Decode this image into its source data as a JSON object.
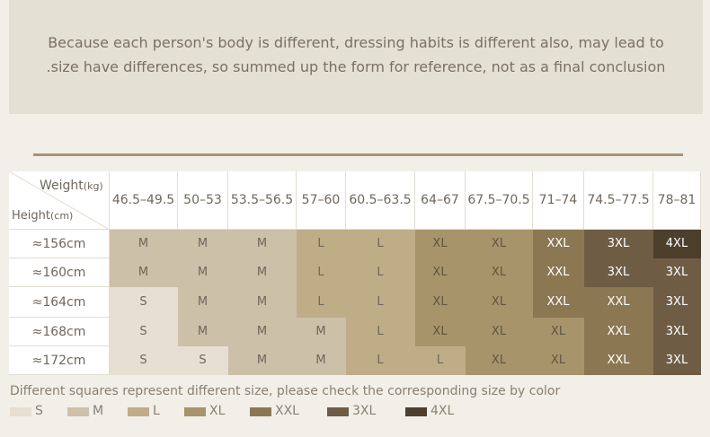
{
  "intro": {
    "lines": [
      "Because each person's body is different, dressing habits is different also, may lead to",
      ".size have differences, so summed up the form for reference, not as a final conclusion"
    ]
  },
  "table": {
    "corner": {
      "weight": "Weight",
      "weight_unit": "(kg)",
      "height": "Height",
      "height_unit": "(cm)"
    },
    "columns": [
      "46.5–49.5",
      "50–53",
      "53.5–56.5",
      "57–60",
      "60.5–63.5",
      "64–67",
      "67.5–70.5",
      "71–74",
      "74.5–77.5",
      "78–81"
    ],
    "rows": [
      {
        "label": "≈156cm",
        "cells": [
          "M",
          "M",
          "M",
          "L",
          "L",
          "XL",
          "XL",
          "XXL",
          "3XL",
          "4XL"
        ]
      },
      {
        "label": "≈160cm",
        "cells": [
          "M",
          "M",
          "M",
          "L",
          "L",
          "XL",
          "XL",
          "XXL",
          "3XL",
          "3XL"
        ]
      },
      {
        "label": "≈164cm",
        "cells": [
          "S",
          "M",
          "M",
          "L",
          "L",
          "XL",
          "XL",
          "XXL",
          "XXL",
          "3XL"
        ]
      },
      {
        "label": "≈168cm",
        "cells": [
          "S",
          "M",
          "M",
          "M",
          "L",
          "XL",
          "XL",
          "XL",
          "XXL",
          "3XL"
        ]
      },
      {
        "label": "≈172cm",
        "cells": [
          "S",
          "S",
          "M",
          "M",
          "L",
          "L",
          "XL",
          "XL",
          "XXL",
          "3XL"
        ]
      }
    ]
  },
  "legend": {
    "caption": "Different squares represent different size, please check the corresponding size by color",
    "items": [
      {
        "label": "S",
        "color": "#e6dfd2",
        "text_color": "#6f675c"
      },
      {
        "label": "M",
        "color": "#cdc0a8",
        "text_color": "#6f675c"
      },
      {
        "label": "L",
        "color": "#bfad88",
        "text_color": "#6f675c"
      },
      {
        "label": "XL",
        "color": "#a8946a",
        "text_color": "#5f563f"
      },
      {
        "label": "XXL",
        "color": "#8c7753",
        "text_color": "#ffffff"
      },
      {
        "label": "3XL",
        "color": "#6e5d44",
        "text_color": "#ffffff"
      },
      {
        "label": "4XL",
        "color": "#4d3f2c",
        "text_color": "#ffffff"
      }
    ]
  }
}
